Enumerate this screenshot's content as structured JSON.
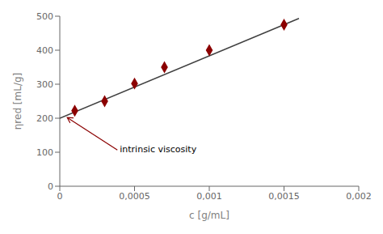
{
  "chart_data": {
    "type": "scatter",
    "xlabel": "c [g/mL]",
    "ylabel": "ηred [mL/g]",
    "series": [
      {
        "type": "line",
        "color": "#404040",
        "x": [
          0.0,
          0.0016
        ],
        "values": [
          200,
          493.3328
        ]
      },
      {
        "type": "scatter",
        "color": "#8B0000",
        "marker": "diamond",
        "x": [
          0.0001,
          0.0003,
          0.0005,
          0.0007,
          0.001,
          0.0015
        ],
        "values": [
          222,
          250,
          302,
          350,
          400,
          475
        ]
      }
    ],
    "annotations": [
      {
        "text": "intrinsic viscosity",
        "x": 5e-05,
        "y": 202
      }
    ],
    "xlim": [
      0,
      0.002
    ],
    "ylim": [
      0,
      500
    ],
    "xticks": [
      0,
      {
        "value": 0.0005,
        "label": "0,0005"
      },
      {
        "value": 0.001,
        "label": "0,001"
      },
      {
        "value": 0.0015,
        "label": "0,0015"
      },
      {
        "value": 0.002,
        "label": "0,002"
      }
    ],
    "yticks": [
      0,
      100,
      200,
      300,
      400,
      500
    ],
    "grid": false
  }
}
